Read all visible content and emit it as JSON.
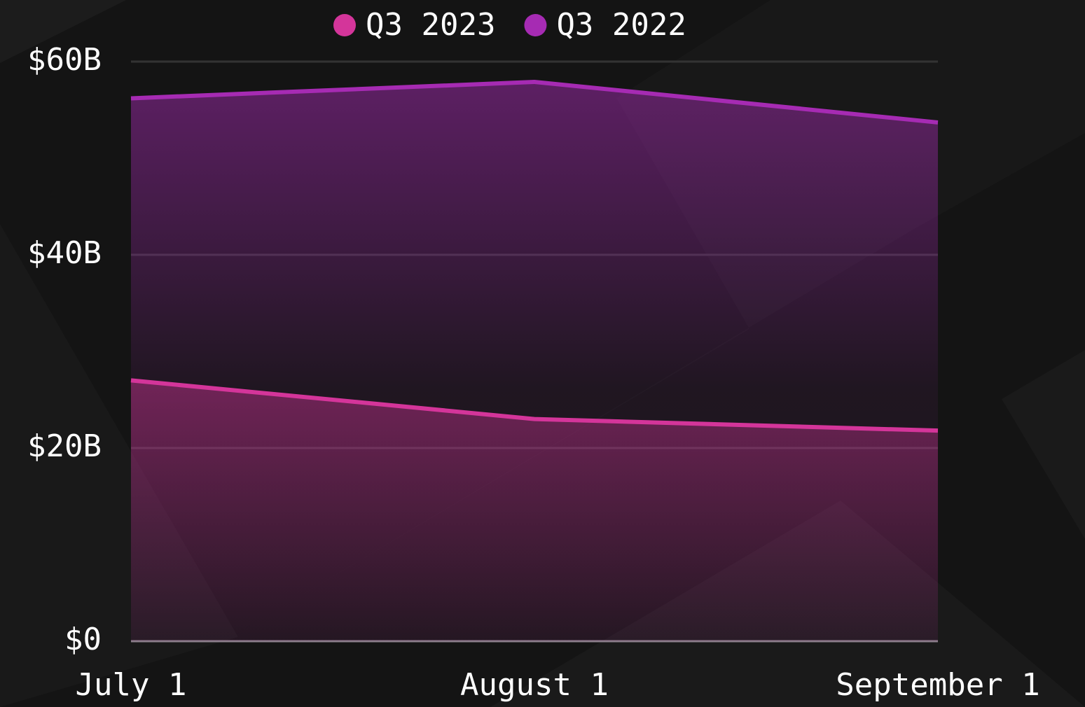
{
  "chart_data": {
    "type": "area",
    "categories": [
      "July 1",
      "August 1",
      "September 1"
    ],
    "series": [
      {
        "name": "Q3 2023",
        "color": "#d4359a",
        "values": [
          27.0,
          23.0,
          21.8
        ]
      },
      {
        "name": "Q3 2022",
        "color": "#a62bb3",
        "values": [
          56.2,
          57.9,
          53.7
        ]
      }
    ],
    "ylim": [
      0,
      60
    ],
    "yticks": [
      {
        "value": 0,
        "label": "$0"
      },
      {
        "value": 20,
        "label": "$20B"
      },
      {
        "value": 40,
        "label": "$40B"
      },
      {
        "value": 60,
        "label": "$60B"
      }
    ],
    "grid": true,
    "legend": "top"
  }
}
